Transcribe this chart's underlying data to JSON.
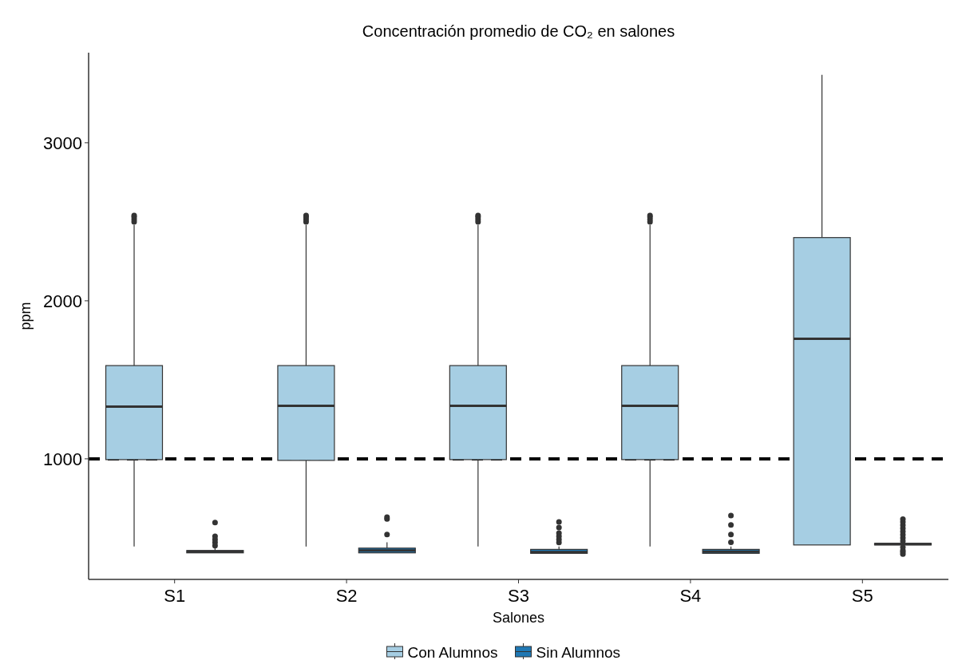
{
  "chart_data": {
    "type": "box",
    "title": "Concentración promedio de CO₂ en salones",
    "xlabel": "Salones",
    "ylabel": "ppm",
    "categories": [
      "S1",
      "S2",
      "S3",
      "S4",
      "S5"
    ],
    "series": [
      {
        "name": "Con Alumnos",
        "color": "#a6cee3",
        "boxes": [
          {
            "low": 445,
            "q1": 995,
            "median": 1330,
            "q3": 1590,
            "high": 2480,
            "outliers": [
              2500,
              2515,
              2530,
              2540
            ]
          },
          {
            "low": 445,
            "q1": 990,
            "median": 1335,
            "q3": 1590,
            "high": 2480,
            "outliers": [
              2500,
              2515,
              2530,
              2540
            ]
          },
          {
            "low": 445,
            "q1": 995,
            "median": 1335,
            "q3": 1590,
            "high": 2480,
            "outliers": [
              2500,
              2515,
              2530,
              2540
            ]
          },
          {
            "low": 445,
            "q1": 995,
            "median": 1335,
            "q3": 1590,
            "high": 2480,
            "outliers": [
              2500,
              2515,
              2530,
              2540
            ]
          },
          {
            "low": 455,
            "q1": 455,
            "median": 1760,
            "q3": 2400,
            "high": 3430
          }
        ]
      },
      {
        "name": "Sin Alumnos",
        "color": "#1f78b4",
        "boxes": [
          {
            "low": 405,
            "q1": 405,
            "median": 412,
            "q3": 420,
            "high": 440,
            "outliers": [
              450,
              470,
              490,
              510,
              597
            ]
          },
          {
            "low": 405,
            "q1": 405,
            "median": 420,
            "q3": 435,
            "high": 472,
            "outliers": [
              521,
              619,
              631
            ]
          },
          {
            "low": 402,
            "q1": 402,
            "median": 410,
            "q3": 427,
            "high": 445,
            "outliers": [
              470,
              490,
              510,
              530,
              565,
              600
            ]
          },
          {
            "low": 402,
            "q1": 402,
            "median": 412,
            "q3": 427,
            "high": 445,
            "outliers": [
              472,
              521,
              582,
              641
            ]
          },
          {
            "low": 455,
            "q1": 455,
            "median": 460,
            "q3": 465,
            "high": 465,
            "outliers": [
              397,
              410,
              420,
              440,
              480,
              500,
              520,
              540,
              560,
              580,
              600,
              618
            ]
          }
        ]
      }
    ],
    "ylim": [
      237,
      3570
    ],
    "yticks": [
      1000,
      2000,
      3000
    ],
    "ref_lines": [
      {
        "axis": "y",
        "value": 1000,
        "color": "#000000",
        "line_style": "dashed"
      }
    ],
    "legend": "bottom",
    "grid": false
  }
}
